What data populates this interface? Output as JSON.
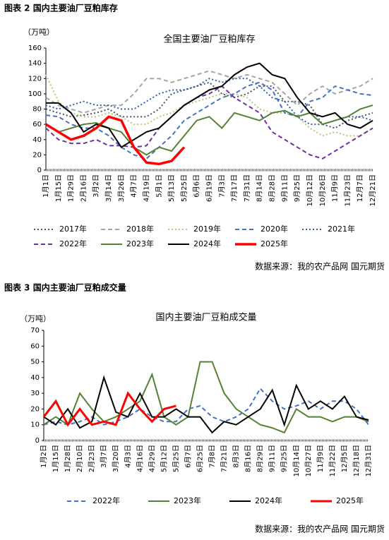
{
  "chart_data": [
    {
      "type": "line",
      "caption": "图表 2 国内主要油厂豆粕库存",
      "title": "全国主要油厂豆粕库存",
      "y_label": "（万吨）",
      "source": "数据来源：我的农产品网 国元期货",
      "categories": [
        "1月1日",
        "1月15日",
        "1月29日",
        "2月16日",
        "3月2日",
        "3月14日",
        "3月26日",
        "4月7日",
        "4月19日",
        "5月1日",
        "5月13日",
        "5月25日",
        "6月6日",
        "6月19日",
        "7月3日",
        "7月17日",
        "7月31日",
        "8月14日",
        "8月28日",
        "9月11日",
        "9月25日",
        "10月12日",
        "10月26日",
        "11月9日",
        "11月23日",
        "12月7日",
        "12月21日"
      ],
      "ylim": [
        0,
        160
      ],
      "yticks": [
        0,
        20,
        40,
        60,
        80,
        100,
        120,
        140,
        160
      ],
      "series": [
        {
          "name": "2017年",
          "color": "#44546a",
          "line_style": "dotted",
          "line_width": 2,
          "values": [
            80,
            75,
            70,
            72,
            75,
            80,
            70,
            70,
            70,
            80,
            100,
            105,
            110,
            115,
            100,
            95,
            100,
            110,
            110,
            90,
            90,
            85,
            60,
            55,
            65,
            70,
            75
          ]
        },
        {
          "name": "2018年",
          "color": "#a5a5a5",
          "line_style": "dashed",
          "line_width": 2,
          "values": [
            95,
            85,
            80,
            75,
            80,
            85,
            85,
            100,
            120,
            120,
            115,
            120,
            125,
            130,
            125,
            120,
            125,
            120,
            115,
            100,
            85,
            100,
            110,
            100,
            105,
            110,
            120
          ]
        },
        {
          "name": "2019年",
          "color": "#b4c77a",
          "line_style": "dotted",
          "line_width": 2,
          "values": [
            125,
            90,
            75,
            70,
            70,
            75,
            70,
            60,
            60,
            70,
            75,
            85,
            90,
            95,
            100,
            100,
            95,
            80,
            75,
            75,
            70,
            55,
            45,
            50,
            45,
            45,
            55
          ]
        },
        {
          "name": "2020年",
          "color": "#4472c4",
          "line_style": "dashed",
          "line_width": 2,
          "values": [
            72,
            70,
            60,
            55,
            55,
            45,
            30,
            20,
            15,
            30,
            45,
            65,
            75,
            85,
            95,
            100,
            110,
            115,
            105,
            75,
            70,
            90,
            95,
            110,
            105,
            100,
            98
          ]
        },
        {
          "name": "2021年",
          "color": "#2e5fa8",
          "line_style": "dotted",
          "line_width": 2,
          "values": [
            85,
            80,
            85,
            90,
            85,
            85,
            80,
            80,
            90,
            100,
            105,
            105,
            110,
            120,
            115,
            120,
            120,
            110,
            95,
            90,
            70,
            60,
            60,
            65,
            70,
            70,
            65
          ]
        },
        {
          "name": "2022年",
          "color": "#7030a0",
          "line_style": "dashed",
          "line_width": 2,
          "values": [
            55,
            40,
            35,
            35,
            40,
            32,
            32,
            30,
            32,
            55,
            70,
            85,
            95,
            100,
            110,
            95,
            85,
            75,
            50,
            40,
            30,
            20,
            15,
            25,
            35,
            45,
            55
          ]
        },
        {
          "name": "2023年",
          "color": "#548235",
          "line_style": "solid",
          "line_width": 2,
          "values": [
            60,
            50,
            55,
            60,
            62,
            55,
            50,
            30,
            20,
            30,
            25,
            45,
            65,
            70,
            55,
            75,
            70,
            65,
            75,
            78,
            70,
            75,
            60,
            65,
            70,
            80,
            85
          ]
        },
        {
          "name": "2024年",
          "color": "#000000",
          "line_style": "solid",
          "line_width": 2,
          "values": [
            88,
            88,
            75,
            50,
            60,
            55,
            30,
            40,
            50,
            55,
            70,
            85,
            95,
            105,
            110,
            125,
            135,
            140,
            125,
            120,
            95,
            75,
            70,
            75,
            60,
            55,
            65
          ]
        },
        {
          "name": "2025年",
          "color": "#ff0000",
          "line_style": "solid",
          "line_width": 3.5,
          "values": [
            60,
            50,
            40,
            45,
            55,
            70,
            65,
            30,
            10,
            8,
            12,
            30,
            null,
            null,
            null,
            null,
            null,
            null,
            null,
            null,
            null,
            null,
            null,
            null,
            null,
            null,
            null
          ]
        }
      ]
    },
    {
      "type": "line",
      "caption": "图表 3 国内主要油厂豆粕成交量",
      "title": "国内主要油厂豆粕成交量",
      "y_label": "（万吨）",
      "source": "数据来源：我的农产品网 国元期货",
      "categories": [
        "1月2日",
        "1月15日",
        "1月28日",
        "2月10日",
        "2月23日",
        "3月7日",
        "3月20日",
        "4月3日",
        "4月16日",
        "4月29日",
        "5月12日",
        "5月25日",
        "6月7日",
        "6月25日",
        "7月8日",
        "7月21日",
        "8月3日",
        "8月16日",
        "8月29日",
        "9月11日",
        "9月25日",
        "10月14日",
        "10月27日",
        "11月9日",
        "11月22日",
        "12月5日",
        "12月18日",
        "12月31日"
      ],
      "ylim": [
        0,
        70
      ],
      "yticks": [
        0,
        10,
        20,
        30,
        40,
        50,
        60,
        70
      ],
      "series": [
        {
          "name": "2022年",
          "color": "#4472c4",
          "line_style": "dashed",
          "line_width": 2,
          "values": [
            10,
            12,
            10,
            12,
            15,
            10,
            12,
            15,
            20,
            15,
            12,
            12,
            20,
            22,
            15,
            12,
            15,
            20,
            33,
            25,
            20,
            22,
            25,
            20,
            25,
            25,
            20,
            10
          ]
        },
        {
          "name": "2023年",
          "color": "#548235",
          "line_style": "solid",
          "line_width": 2,
          "values": [
            10,
            15,
            10,
            30,
            20,
            12,
            15,
            20,
            25,
            42,
            15,
            10,
            15,
            50,
            50,
            30,
            20,
            15,
            10,
            8,
            5,
            20,
            15,
            15,
            12,
            15,
            15,
            12
          ]
        },
        {
          "name": "2024年",
          "color": "#000000",
          "line_style": "solid",
          "line_width": 2,
          "values": [
            15,
            10,
            20,
            8,
            12,
            40,
            18,
            15,
            30,
            15,
            15,
            20,
            15,
            15,
            5,
            12,
            10,
            15,
            20,
            32,
            10,
            35,
            20,
            25,
            20,
            28,
            15,
            13
          ]
        },
        {
          "name": "2025年",
          "color": "#ff0000",
          "line_style": "solid",
          "line_width": 3,
          "values": [
            15,
            25,
            10,
            20,
            10,
            12,
            10,
            30,
            20,
            12,
            20,
            22,
            null,
            null,
            null,
            null,
            null,
            null,
            null,
            null,
            null,
            null,
            null,
            null,
            null,
            null,
            null,
            null
          ]
        }
      ]
    }
  ]
}
